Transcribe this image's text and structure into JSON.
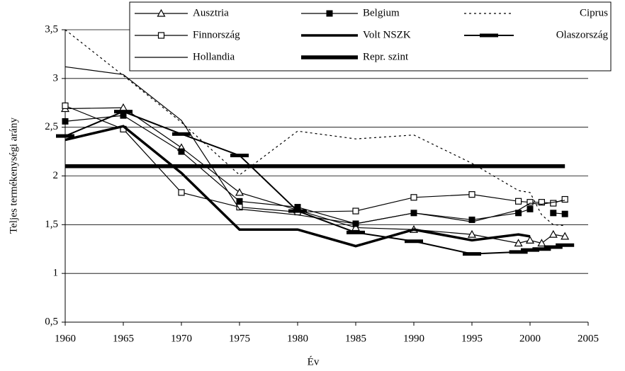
{
  "chart_data": {
    "type": "line",
    "xlabel": "Év",
    "ylabel": "Teljes termékenységi arány",
    "x": [
      1960,
      1965,
      1970,
      1975,
      1980,
      1985,
      1990,
      1995,
      1999,
      2000,
      2001,
      2002,
      2003
    ],
    "xlim": [
      1960,
      2005
    ],
    "xticks": [
      1960,
      1965,
      1970,
      1975,
      1980,
      1985,
      1990,
      1995,
      2000,
      2005
    ],
    "ylim": [
      0.5,
      3.5
    ],
    "yticks": [
      {
        "value": 0.5,
        "label": "0,5"
      },
      1,
      {
        "value": 1.5,
        "label": "1,5"
      },
      2,
      {
        "value": 2.5,
        "label": "2,5"
      },
      3,
      {
        "value": 3.5,
        "label": "3,5"
      }
    ],
    "grid": true,
    "series": [
      {
        "name": "Ausztria",
        "color": "#000",
        "width": 1.2,
        "marker": "triangle-open",
        "values": [
          2.69,
          2.7,
          2.29,
          1.83,
          1.65,
          1.47,
          1.45,
          1.4,
          1.31,
          1.34,
          1.31,
          1.4,
          1.38
        ]
      },
      {
        "name": "Belgium",
        "color": "#000",
        "width": 1.2,
        "marker": "square-filled",
        "values": [
          2.56,
          2.62,
          2.25,
          1.74,
          1.68,
          1.51,
          1.62,
          1.55,
          1.62,
          1.66,
          null,
          1.62,
          1.61
        ]
      },
      {
        "name": "Ciprus",
        "color": "#000",
        "width": 1.2,
        "dashed": true,
        "values": [
          3.5,
          3.03,
          2.55,
          2.01,
          2.46,
          2.38,
          2.42,
          2.13,
          1.85,
          1.83,
          1.6,
          1.5,
          1.49
        ]
      },
      {
        "name": "Finnország",
        "color": "#000",
        "width": 1.2,
        "marker": "square-open",
        "values": [
          2.72,
          2.48,
          1.83,
          1.68,
          1.63,
          1.64,
          1.78,
          1.81,
          1.74,
          1.73,
          1.73,
          1.72,
          1.76
        ]
      },
      {
        "name": "Volt NSZK",
        "color": "#000",
        "width": 3.5,
        "values": [
          2.37,
          2.51,
          2.03,
          1.45,
          1.45,
          1.28,
          1.45,
          1.34,
          1.4,
          1.38,
          null,
          null,
          null
        ]
      },
      {
        "name": "Olaszország",
        "color": "#000",
        "width": 2,
        "marker": "dash",
        "values": [
          2.41,
          2.66,
          2.43,
          2.21,
          1.64,
          1.42,
          1.33,
          1.2,
          1.22,
          1.24,
          1.25,
          1.27,
          1.29
        ]
      },
      {
        "name": "Hollandia",
        "color": "#000",
        "width": 1.2,
        "values": [
          3.12,
          3.04,
          2.57,
          1.66,
          1.6,
          1.51,
          1.62,
          1.53,
          1.65,
          1.72,
          1.71,
          1.73,
          1.75
        ]
      },
      {
        "name": "Repr. szint",
        "color": "#000",
        "width": 5.5,
        "values": [
          2.1,
          2.1,
          2.1,
          2.1,
          2.1,
          2.1,
          2.1,
          2.1,
          2.1,
          2.1,
          2.1,
          2.1,
          2.1
        ]
      }
    ]
  }
}
